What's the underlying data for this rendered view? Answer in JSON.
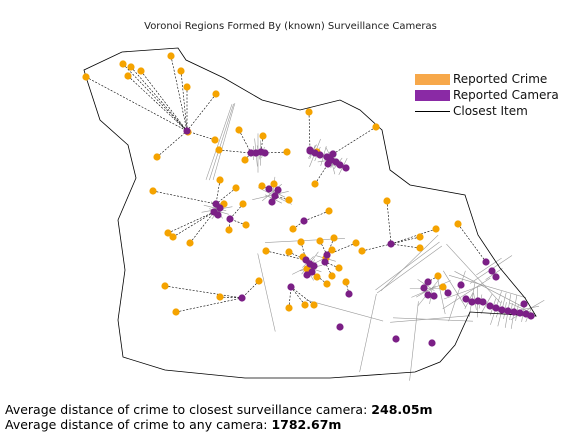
{
  "colors": {
    "crime": "#f5a300",
    "camera": "#7b1f86",
    "line": "#000000"
  },
  "chart_data": {
    "type": "scatter",
    "title": "Voronoi Regions Formed By (known) Surveillance Cameras",
    "legend": {
      "placement": "top-right",
      "items": [
        {
          "label": "Reported Crime",
          "color": "#f7a84a",
          "kind": "patch"
        },
        {
          "label": "Reported Camera",
          "color": "#8a2aa5",
          "kind": "patch"
        },
        {
          "label": "Closest Item",
          "color": "#000000",
          "kind": "line"
        }
      ]
    },
    "axes_visible": false,
    "grid": false,
    "series": [
      {
        "name": "Reported Crime",
        "color": "#f5a300",
        "points": [
          [
            86,
            77
          ],
          [
            123,
            64
          ],
          [
            131,
            67
          ],
          [
            128,
            76
          ],
          [
            141,
            71
          ],
          [
            171,
            56
          ],
          [
            181,
            71
          ],
          [
            187,
            87
          ],
          [
            216,
            94
          ],
          [
            309,
            112
          ],
          [
            376,
            127
          ],
          [
            239,
            130
          ],
          [
            263,
            136
          ],
          [
            188,
            132
          ],
          [
            215,
            140
          ],
          [
            219,
            150
          ],
          [
            157,
            157
          ],
          [
            245,
            160
          ],
          [
            287,
            152
          ],
          [
            317,
            152
          ],
          [
            220,
            180
          ],
          [
            236,
            188
          ],
          [
            262,
            186
          ],
          [
            274,
            184
          ],
          [
            315,
            184
          ],
          [
            289,
            200
          ],
          [
            153,
            191
          ],
          [
            329,
            211
          ],
          [
            387,
            201
          ],
          [
            224,
            204
          ],
          [
            243,
            204
          ],
          [
            168,
            233
          ],
          [
            173,
            237
          ],
          [
            190,
            243
          ],
          [
            229,
            230
          ],
          [
            246,
            225
          ],
          [
            293,
            229
          ],
          [
            301,
            242
          ],
          [
            289,
            252
          ],
          [
            303,
            257
          ],
          [
            307,
            269
          ],
          [
            320,
            241
          ],
          [
            334,
            238
          ],
          [
            332,
            250
          ],
          [
            326,
            258
          ],
          [
            327,
            284
          ],
          [
            317,
            277
          ],
          [
            266,
            251
          ],
          [
            259,
            281
          ],
          [
            220,
            297
          ],
          [
            176,
            312
          ],
          [
            314,
            305
          ],
          [
            332,
            276
          ],
          [
            339,
            268
          ],
          [
            346,
            282
          ],
          [
            356,
            243
          ],
          [
            362,
            251
          ],
          [
            436,
            229
          ],
          [
            458,
            224
          ],
          [
            420,
            237
          ],
          [
            420,
            248
          ],
          [
            438,
            276
          ],
          [
            443,
            287
          ],
          [
            289,
            308
          ],
          [
            305,
            305
          ],
          [
            165,
            286
          ]
        ]
      },
      {
        "name": "Reported Camera",
        "color": "#7b1f86",
        "points": [
          [
            187,
            131
          ],
          [
            251,
            153
          ],
          [
            256,
            153
          ],
          [
            261,
            152
          ],
          [
            265,
            153
          ],
          [
            310,
            151
          ],
          [
            315,
            153
          ],
          [
            320,
            155
          ],
          [
            327,
            157
          ],
          [
            331,
            160
          ],
          [
            336,
            162
          ],
          [
            340,
            165
          ],
          [
            346,
            168
          ],
          [
            328,
            164
          ],
          [
            333,
            154
          ],
          [
            269,
            189
          ],
          [
            278,
            190
          ],
          [
            275,
            196
          ],
          [
            272,
            202
          ],
          [
            216,
            204
          ],
          [
            220,
            208
          ],
          [
            214,
            212
          ],
          [
            218,
            215
          ],
          [
            230,
            219
          ],
          [
            304,
            221
          ],
          [
            306,
            260
          ],
          [
            310,
            264
          ],
          [
            314,
            266
          ],
          [
            307,
            275
          ],
          [
            312,
            272
          ],
          [
            325,
            262
          ],
          [
            327,
            255
          ],
          [
            391,
            244
          ],
          [
            349,
            294
          ],
          [
            242,
            298
          ],
          [
            291,
            287
          ],
          [
            340,
            327
          ],
          [
            432,
            343
          ],
          [
            486,
            262
          ],
          [
            492,
            271
          ],
          [
            496,
            277
          ],
          [
            428,
            282
          ],
          [
            424,
            288
          ],
          [
            428,
            295
          ],
          [
            434,
            296
          ],
          [
            448,
            293
          ],
          [
            461,
            285
          ],
          [
            466,
            299
          ],
          [
            472,
            302
          ],
          [
            478,
            301
          ],
          [
            483,
            302
          ],
          [
            490,
            306
          ],
          [
            496,
            308
          ],
          [
            502,
            310
          ],
          [
            508,
            311
          ],
          [
            514,
            312
          ],
          [
            520,
            313
          ],
          [
            526,
            314
          ],
          [
            531,
            316
          ],
          [
            524,
            304
          ],
          [
            396,
            339
          ],
          [
            310,
            150
          ]
        ]
      }
    ]
  },
  "footer": {
    "avg_closest_label": "Average distance of crime to closest surveillance camera:",
    "avg_closest_value": "248.05m",
    "avg_any_label": "Average distance of crime to any camera:",
    "avg_any_value": "1782.67m"
  }
}
